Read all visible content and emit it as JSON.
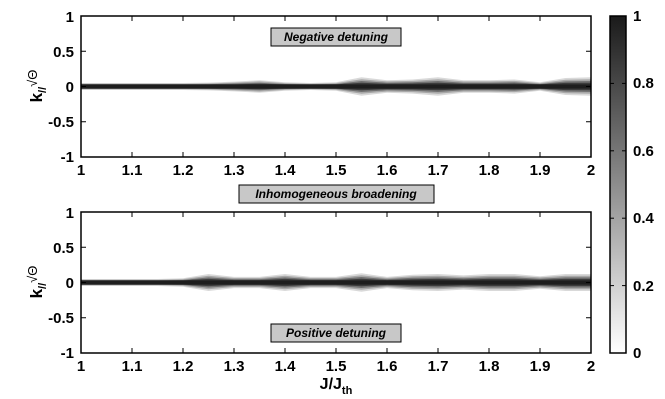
{
  "chart_data": [
    {
      "type": "heatmap",
      "name": "top-panel",
      "xlim": [
        1,
        2
      ],
      "ylim": [
        -1,
        1
      ],
      "x_ticks": [
        "1",
        "1.1",
        "1.2",
        "1.3",
        "1.4",
        "1.5",
        "1.6",
        "1.7",
        "1.8",
        "1.9",
        "2"
      ],
      "y_ticks": [
        "1",
        "0.5",
        "0",
        "-0.5",
        "-1"
      ],
      "ylabel_main": "k",
      "ylabel_sub": "//",
      "ylabel_sqrt": "√Θ",
      "annotation": "Negative detuning",
      "band_center": 0,
      "band_core_halfwidth": 0.03,
      "band_profile": {
        "x": [
          1.0,
          1.05,
          1.1,
          1.15,
          1.2,
          1.25,
          1.3,
          1.35,
          1.4,
          1.45,
          1.5,
          1.55,
          1.6,
          1.65,
          1.7,
          1.75,
          1.8,
          1.85,
          1.9,
          1.95,
          2.0
        ],
        "halfwidth": [
          0.05,
          0.05,
          0.05,
          0.05,
          0.05,
          0.055,
          0.07,
          0.09,
          0.06,
          0.05,
          0.06,
          0.13,
          0.09,
          0.1,
          0.13,
          0.09,
          0.09,
          0.1,
          0.06,
          0.12,
          0.13
        ]
      }
    },
    {
      "type": "heatmap",
      "name": "bottom-panel",
      "xlim": [
        1,
        2
      ],
      "ylim": [
        -1,
        1
      ],
      "x_ticks": [
        "1",
        "1.1",
        "1.2",
        "1.3",
        "1.4",
        "1.5",
        "1.6",
        "1.7",
        "1.8",
        "1.9",
        "2"
      ],
      "y_ticks": [
        "1",
        "0.5",
        "0",
        "-0.5",
        "-1"
      ],
      "ylabel_main": "k",
      "ylabel_sub": "//",
      "ylabel_sqrt": "√Θ",
      "xlabel_main": "J/J",
      "xlabel_sub": "th",
      "annotation": "Positive detuning",
      "band_center": 0,
      "band_core_halfwidth": 0.03,
      "band_profile": {
        "x": [
          1.0,
          1.05,
          1.1,
          1.15,
          1.2,
          1.25,
          1.3,
          1.35,
          1.4,
          1.45,
          1.5,
          1.55,
          1.6,
          1.65,
          1.7,
          1.75,
          1.8,
          1.85,
          1.9,
          1.95,
          2.0
        ],
        "halfwidth": [
          0.05,
          0.05,
          0.05,
          0.05,
          0.06,
          0.12,
          0.08,
          0.08,
          0.12,
          0.08,
          0.08,
          0.13,
          0.08,
          0.11,
          0.12,
          0.1,
          0.12,
          0.12,
          0.09,
          0.12,
          0.12
        ]
      }
    }
  ],
  "middle_annotation": "Inhomogeneous broadening",
  "colorbar": {
    "range": [
      0,
      1
    ],
    "ticks": [
      "1",
      "0.8",
      "0.6",
      "0.4",
      "0.2",
      "0"
    ],
    "colormap": "gray-reversed",
    "color_low": "#ffffff",
    "color_high": "#1a1a1a"
  }
}
